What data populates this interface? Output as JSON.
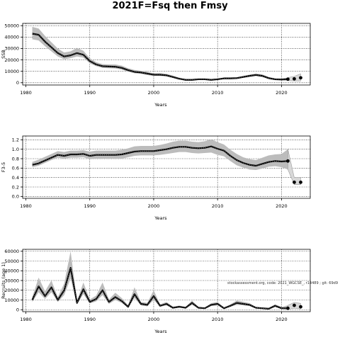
{
  "title": "2021F=Fsq then Fmsy",
  "watermark": "stockassessment.org, code: 2021_WGCSE_, r14489 ; git: 69d9",
  "colors": {
    "line": "#000000",
    "band": "#bcbcbc",
    "bg": "#ffffff"
  },
  "chart_data": [
    {
      "type": "line",
      "ylabel": "SSB",
      "xlabel": "Years",
      "grid": true,
      "xlim": [
        1979.5,
        2024.5
      ],
      "ylim": [
        -2000,
        52000
      ],
      "xticks": [
        1980,
        1990,
        2000,
        2010,
        2020
      ],
      "yticks": [
        0,
        10000,
        20000,
        30000,
        40000,
        50000
      ],
      "ytick_labels": [
        "0",
        "10000",
        "20000",
        "30000",
        "40000",
        "50000"
      ],
      "series": [
        {
          "x": [
            1981,
            1982,
            1983,
            1984,
            1985,
            1986,
            1987,
            1988,
            1989,
            1990,
            1991,
            1992,
            1993,
            1994,
            1995,
            1996,
            1997,
            1998,
            1999,
            2000,
            2001,
            2002,
            2003,
            2004,
            2005,
            2006,
            2007,
            2008,
            2009,
            2010,
            2011,
            2012,
            2013,
            2014,
            2015,
            2016,
            2017,
            2018,
            2019,
            2020,
            2021
          ],
          "y": [
            43000,
            42000,
            36000,
            31000,
            26000,
            23000,
            24000,
            26000,
            24500,
            19000,
            16000,
            14500,
            14200,
            14000,
            13000,
            11000,
            9500,
            9000,
            8000,
            7000,
            7000,
            6500,
            5000,
            3500,
            2500,
            2500,
            3000,
            3000,
            2500,
            3000,
            3800,
            3800,
            4000,
            5000,
            6000,
            6800,
            6000,
            4000,
            3000,
            2800,
            3100
          ],
          "lower": [
            38000,
            37000,
            32000,
            27500,
            23000,
            20500,
            21500,
            23000,
            22000,
            17000,
            14500,
            13000,
            12700,
            12500,
            11500,
            9700,
            8300,
            7800,
            6800,
            6000,
            5900,
            5500,
            4100,
            2800,
            1900,
            1900,
            2400,
            2400,
            1900,
            2400,
            3100,
            3100,
            3300,
            4200,
            5100,
            5800,
            5000,
            3200,
            2300,
            2100,
            1800
          ],
          "upper": [
            49000,
            47500,
            41000,
            35500,
            30000,
            26500,
            27500,
            30500,
            28000,
            21500,
            18000,
            16200,
            16000,
            16000,
            15000,
            12700,
            11200,
            10500,
            9500,
            8200,
            8400,
            7800,
            6200,
            4400,
            3200,
            3200,
            3700,
            3700,
            3200,
            3700,
            4600,
            4600,
            4800,
            6000,
            7100,
            8000,
            7300,
            5000,
            3800,
            3600,
            4500
          ]
        }
      ],
      "forecast": {
        "x": [
          2021,
          2022,
          2023
        ],
        "y": [
          3100,
          3400,
          4300
        ],
        "lower": [
          1800,
          1600,
          1500
        ],
        "upper": [
          4500,
          5600,
          7800
        ]
      }
    },
    {
      "type": "line",
      "ylabel": "F3-5",
      "xlabel": "Years",
      "grid": true,
      "xlim": [
        1979.5,
        2024.5
      ],
      "ylim": [
        -0.04,
        1.28
      ],
      "xticks": [
        1980,
        1990,
        2000,
        2010,
        2020
      ],
      "yticks": [
        0,
        0.2,
        0.4,
        0.6,
        0.8,
        1.0,
        1.2
      ],
      "ytick_labels": [
        "0.0",
        "0.2",
        "0.4",
        "0.6",
        "0.8",
        "1.0",
        "1.2"
      ],
      "series": [
        {
          "x": [
            1981,
            1982,
            1983,
            1984,
            1985,
            1986,
            1987,
            1988,
            1989,
            1990,
            1991,
            1992,
            1993,
            1994,
            1995,
            1996,
            1997,
            1998,
            1999,
            2000,
            2001,
            2002,
            2003,
            2004,
            2005,
            2006,
            2007,
            2008,
            2009,
            2010,
            2011,
            2012,
            2013,
            2014,
            2015,
            2016,
            2017,
            2018,
            2019,
            2020,
            2021
          ],
          "y": [
            0.67,
            0.7,
            0.76,
            0.82,
            0.88,
            0.86,
            0.89,
            0.89,
            0.9,
            0.86,
            0.88,
            0.88,
            0.88,
            0.88,
            0.89,
            0.92,
            0.95,
            0.96,
            0.96,
            0.96,
            0.98,
            1.0,
            1.03,
            1.05,
            1.05,
            1.03,
            1.02,
            1.03,
            1.06,
            1.01,
            0.97,
            0.86,
            0.77,
            0.71,
            0.67,
            0.65,
            0.69,
            0.73,
            0.75,
            0.74,
            0.75
          ],
          "lower": [
            0.62,
            0.65,
            0.71,
            0.77,
            0.82,
            0.8,
            0.82,
            0.82,
            0.83,
            0.79,
            0.8,
            0.8,
            0.8,
            0.8,
            0.8,
            0.83,
            0.86,
            0.87,
            0.87,
            0.87,
            0.88,
            0.9,
            0.92,
            0.94,
            0.94,
            0.92,
            0.91,
            0.92,
            0.93,
            0.88,
            0.85,
            0.75,
            0.66,
            0.61,
            0.57,
            0.56,
            0.59,
            0.63,
            0.64,
            0.62,
            0.57
          ],
          "upper": [
            0.73,
            0.78,
            0.84,
            0.9,
            0.96,
            0.94,
            0.97,
            0.97,
            0.98,
            0.95,
            0.97,
            0.97,
            0.97,
            0.97,
            0.99,
            1.02,
            1.06,
            1.07,
            1.07,
            1.07,
            1.09,
            1.12,
            1.16,
            1.18,
            1.18,
            1.16,
            1.15,
            1.17,
            1.21,
            1.15,
            1.1,
            0.99,
            0.9,
            0.83,
            0.79,
            0.77,
            0.82,
            0.87,
            0.89,
            0.9,
            1.0
          ]
        }
      ],
      "forecast": {
        "x": [
          2021,
          2022,
          2023
        ],
        "y": [
          0.75,
          0.3,
          0.3
        ],
        "lower": [
          0.57,
          0.25,
          0.25
        ],
        "upper": [
          1.0,
          0.4,
          0.4
        ]
      }
    },
    {
      "type": "line",
      "ylabel": "Recruits (age 1)",
      "xlabel": "Years",
      "grid": true,
      "xlim": [
        1979.5,
        2024.5
      ],
      "ylim": [
        -2000,
        62000
      ],
      "xticks": [
        1980,
        1990,
        2000,
        2010,
        2020
      ],
      "yticks": [
        0,
        10000,
        20000,
        30000,
        40000,
        50000,
        60000
      ],
      "ytick_labels": [
        "0",
        "10000",
        "20000",
        "30000",
        "40000",
        "50000",
        "60000"
      ],
      "series": [
        {
          "x": [
            1981,
            1982,
            1983,
            1984,
            1985,
            1986,
            1987,
            1988,
            1989,
            1990,
            1991,
            1992,
            1993,
            1994,
            1995,
            1996,
            1997,
            1998,
            1999,
            2000,
            2001,
            2002,
            2003,
            2004,
            2005,
            2006,
            2007,
            2008,
            2009,
            2010,
            2011,
            2012,
            2013,
            2014,
            2015,
            2016,
            2017,
            2018,
            2019,
            2020,
            2021
          ],
          "y": [
            10000,
            24000,
            14000,
            23000,
            10000,
            20000,
            43000,
            7000,
            21000,
            8000,
            11000,
            20000,
            8000,
            13000,
            9000,
            3000,
            16000,
            6000,
            5000,
            14000,
            4000,
            6000,
            2000,
            3000,
            2000,
            7000,
            2000,
            1500,
            5000,
            6000,
            1500,
            4000,
            7000,
            6000,
            5000,
            2000,
            1500,
            1000,
            4000,
            1500,
            1500
          ],
          "lower": [
            8000,
            18000,
            11000,
            18000,
            8000,
            15000,
            32000,
            5500,
            16000,
            6500,
            8500,
            15000,
            6000,
            10000,
            7000,
            2000,
            12000,
            4500,
            3500,
            10000,
            3000,
            4500,
            1400,
            2200,
            1400,
            5000,
            1400,
            1000,
            3800,
            4500,
            1000,
            3000,
            5000,
            4500,
            3800,
            1400,
            1000,
            600,
            2800,
            800,
            400
          ],
          "upper": [
            13000,
            33000,
            19000,
            30000,
            13000,
            27000,
            60000,
            9000,
            28000,
            10500,
            14500,
            28000,
            10500,
            17500,
            12000,
            4500,
            23000,
            8000,
            7000,
            20000,
            5500,
            8000,
            3000,
            4200,
            2800,
            9500,
            2800,
            2200,
            6700,
            8000,
            2200,
            5500,
            9500,
            8200,
            6700,
            2800,
            2200,
            1600,
            5600,
            2800,
            4500
          ]
        }
      ],
      "forecast": {
        "x": [
          2021,
          2022,
          2023
        ],
        "y": [
          1500,
          4500,
          3000
        ],
        "lower": [
          400,
          1500,
          800
        ],
        "upper": [
          4500,
          7500,
          6500
        ]
      }
    }
  ]
}
